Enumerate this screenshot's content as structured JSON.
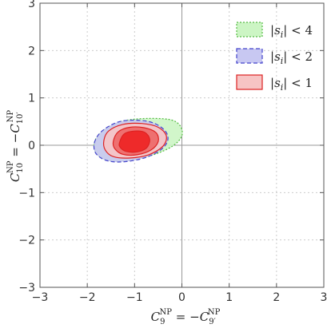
{
  "chart_data": {
    "type": "contour",
    "title": "",
    "xlabel": {
      "main": "C",
      "sub": "9",
      "sup": "NP",
      "rhs_main": "C",
      "rhs_sub": "9′",
      "rhs_sup": "NP"
    },
    "ylabel": {
      "main": "C",
      "sub": "10",
      "sup": "NP",
      "rhs_main": "C",
      "rhs_sub": "10′",
      "rhs_sup": "NP"
    },
    "xlim": [
      -3,
      3
    ],
    "ylim": [
      -3,
      3
    ],
    "xticks": [
      "-3",
      "-2",
      "-1",
      "0",
      "1",
      "2",
      "3"
    ],
    "yticks": [
      "-3",
      "-2",
      "-1",
      "0",
      "1",
      "2",
      "3"
    ],
    "grid": true,
    "legend_position": "top-right",
    "series": [
      {
        "name": "|s_i| < 4",
        "legend_text": {
          "pre": "|",
          "var": "s",
          "sub": "i",
          "post": "| < 4"
        },
        "fill": "#ccf5c4",
        "stroke": "#55bb44",
        "dash": "2,2",
        "regions": [
          {
            "level": "outer",
            "points": [
              [
                -1.85,
                0.05
              ],
              [
                -1.7,
                0.28
              ],
              [
                -1.35,
                0.48
              ],
              [
                -0.9,
                0.56
              ],
              [
                -0.3,
                0.55
              ],
              [
                -0.05,
                0.43
              ],
              [
                0.0,
                0.2
              ],
              [
                -0.2,
                -0.02
              ],
              [
                -0.6,
                -0.2
              ],
              [
                -1.1,
                -0.32
              ],
              [
                -1.55,
                -0.32
              ],
              [
                -1.8,
                -0.18
              ]
            ]
          }
        ]
      },
      {
        "name": "|s_i| < 2",
        "legend_text": {
          "pre": "|",
          "var": "s",
          "sub": "i",
          "post": "| < 2"
        },
        "fill": "#c8c8f2",
        "stroke": "#4444cc",
        "dash": "5,3",
        "regions": [
          {
            "level": "outer",
            "points": [
              [
                -1.85,
                0.05
              ],
              [
                -1.7,
                0.29
              ],
              [
                -1.35,
                0.49
              ],
              [
                -0.95,
                0.53
              ],
              [
                -0.6,
                0.47
              ],
              [
                -0.35,
                0.3
              ],
              [
                -0.3,
                0.1
              ],
              [
                -0.45,
                -0.1
              ],
              [
                -0.8,
                -0.27
              ],
              [
                -1.25,
                -0.35
              ],
              [
                -1.6,
                -0.32
              ],
              [
                -1.82,
                -0.17
              ]
            ]
          }
        ]
      },
      {
        "name": "|s_i| < 1",
        "legend_text": {
          "pre": "|",
          "var": "s",
          "sub": "i",
          "post": "| < 1"
        },
        "fill": "#f7c4c4",
        "stroke": "#dd2222",
        "dash": "",
        "regions": [
          {
            "level": "outer",
            "points": [
              [
                -1.65,
                0.1
              ],
              [
                -1.55,
                0.3
              ],
              [
                -1.25,
                0.44
              ],
              [
                -0.85,
                0.46
              ],
              [
                -0.5,
                0.38
              ],
              [
                -0.33,
                0.2
              ],
              [
                -0.4,
                -0.02
              ],
              [
                -0.7,
                -0.2
              ],
              [
                -1.1,
                -0.27
              ],
              [
                -1.45,
                -0.24
              ],
              [
                -1.62,
                -0.1
              ]
            ]
          },
          {
            "level": "middle",
            "points": [
              [
                -1.45,
                0.08
              ],
              [
                -1.35,
                0.28
              ],
              [
                -1.1,
                0.38
              ],
              [
                -0.8,
                0.37
              ],
              [
                -0.55,
                0.27
              ],
              [
                -0.5,
                0.08
              ],
              [
                -0.65,
                -0.1
              ],
              [
                -0.95,
                -0.2
              ],
              [
                -1.25,
                -0.19
              ],
              [
                -1.42,
                -0.07
              ]
            ]
          },
          {
            "level": "inner",
            "points": [
              [
                -1.32,
                0.05
              ],
              [
                -1.22,
                0.24
              ],
              [
                -1.0,
                0.3
              ],
              [
                -0.78,
                0.27
              ],
              [
                -0.68,
                0.12
              ],
              [
                -0.75,
                -0.06
              ],
              [
                -0.95,
                -0.14
              ],
              [
                -1.18,
                -0.13
              ],
              [
                -1.3,
                -0.05
              ]
            ]
          }
        ]
      }
    ]
  }
}
